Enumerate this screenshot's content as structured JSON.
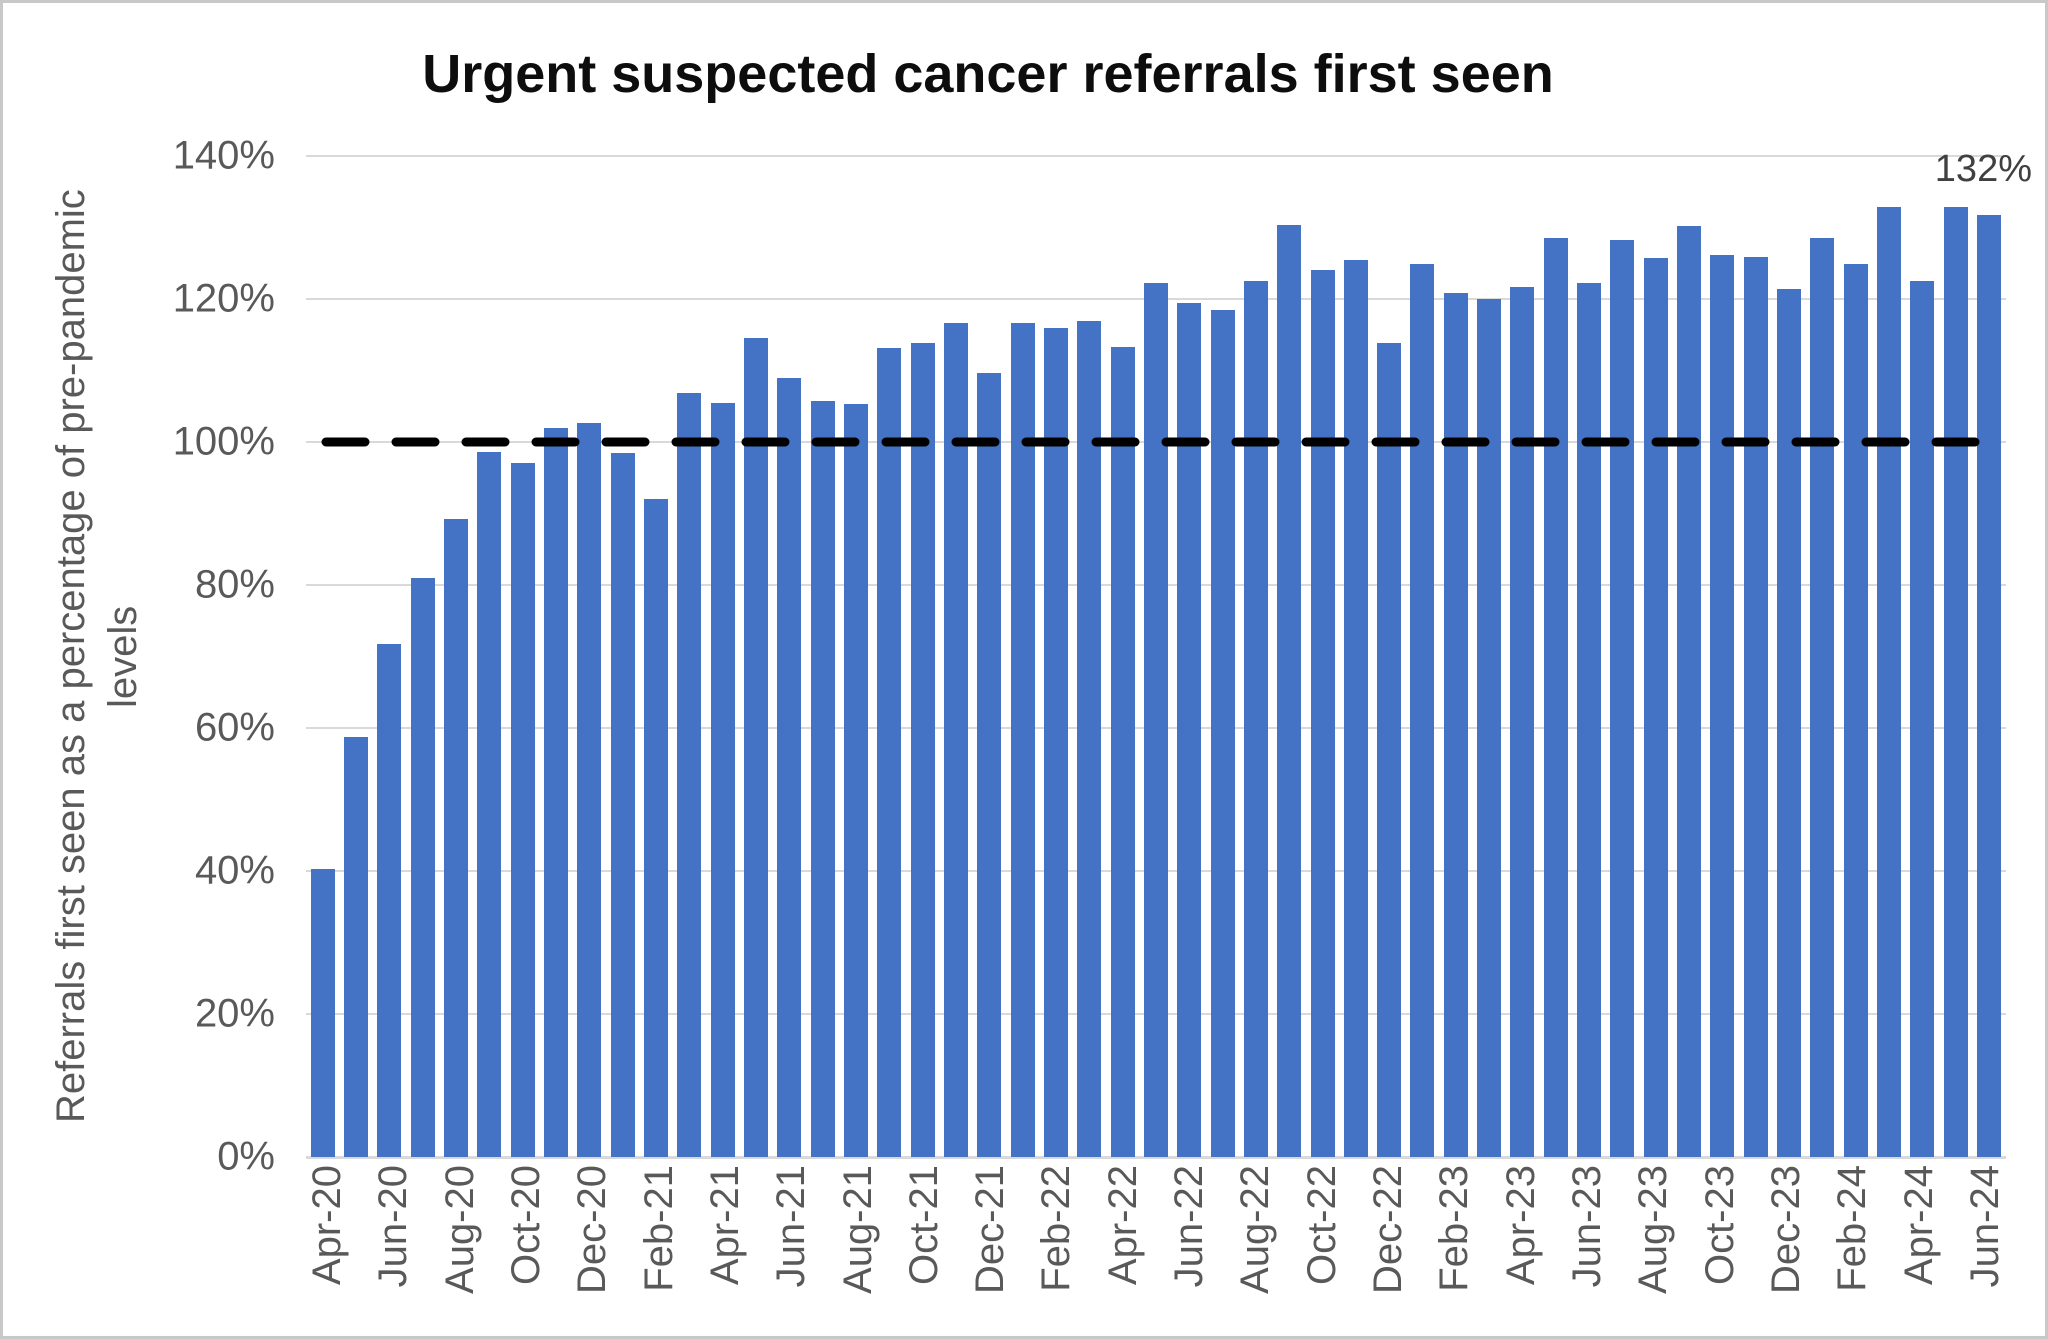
{
  "chart_data": {
    "type": "bar",
    "title": "Urgent suspected cancer referrals first seen",
    "ylabel": "Referrals first seen as a percentage of pre-pandemic levels",
    "ylabel_lines": [
      "Referrals first seen as a percentage of pre-pandemic",
      "levels"
    ],
    "xlabel": "",
    "ylim": [
      0,
      140
    ],
    "grid": true,
    "bar_color": "#4472c4",
    "gridline_color": "#d9d9d9",
    "tick_color": "#595959",
    "yticks": [
      {
        "value": 0,
        "label": "0%"
      },
      {
        "value": 20,
        "label": "20%"
      },
      {
        "value": 40,
        "label": "40%"
      },
      {
        "value": 60,
        "label": "60%"
      },
      {
        "value": 80,
        "label": "80%"
      },
      {
        "value": 100,
        "label": "100%"
      },
      {
        "value": 120,
        "label": "120%"
      },
      {
        "value": 140,
        "label": "140%"
      }
    ],
    "x_tick_step": 2,
    "categories": [
      "Apr-20",
      "May-20",
      "Jun-20",
      "Jul-20",
      "Aug-20",
      "Sep-20",
      "Oct-20",
      "Nov-20",
      "Dec-20",
      "Jan-21",
      "Feb-21",
      "Mar-21",
      "Apr-21",
      "May-21",
      "Jun-21",
      "Jul-21",
      "Aug-21",
      "Sep-21",
      "Oct-21",
      "Nov-21",
      "Dec-21",
      "Jan-22",
      "Feb-22",
      "Mar-22",
      "Apr-22",
      "May-22",
      "Jun-22",
      "Jul-22",
      "Aug-22",
      "Sep-22",
      "Oct-22",
      "Nov-22",
      "Dec-22",
      "Jan-23",
      "Feb-23",
      "Mar-23",
      "Apr-23",
      "May-23",
      "Jun-23",
      "Jul-23",
      "Aug-23",
      "Sep-23",
      "Oct-23",
      "Nov-23",
      "Dec-23",
      "Jan-24",
      "Feb-24",
      "Mar-24",
      "Apr-24",
      "May-24",
      "Jun-24"
    ],
    "values": [
      40.3,
      58.8,
      71.8,
      81.0,
      89.3,
      98.6,
      97.0,
      102.0,
      102.7,
      98.5,
      92.0,
      106.9,
      105.4,
      114.5,
      108.9,
      105.7,
      105.3,
      113.1,
      113.9,
      116.6,
      109.6,
      116.7,
      115.9,
      116.9,
      113.3,
      122.3,
      119.5,
      118.4,
      122.5,
      130.4,
      124.0,
      125.5,
      113.8,
      124.9,
      120.9,
      120.0,
      121.7,
      128.5,
      122.2,
      128.2,
      125.8,
      130.2,
      126.2,
      125.9,
      121.4,
      128.5,
      124.9,
      132.9,
      122.5,
      132.8,
      131.7
    ],
    "reference_line": {
      "value": 100,
      "style": "dashed",
      "color": "#000000"
    },
    "annotation": {
      "text": "132%",
      "attached_to": "Jun-24"
    }
  }
}
